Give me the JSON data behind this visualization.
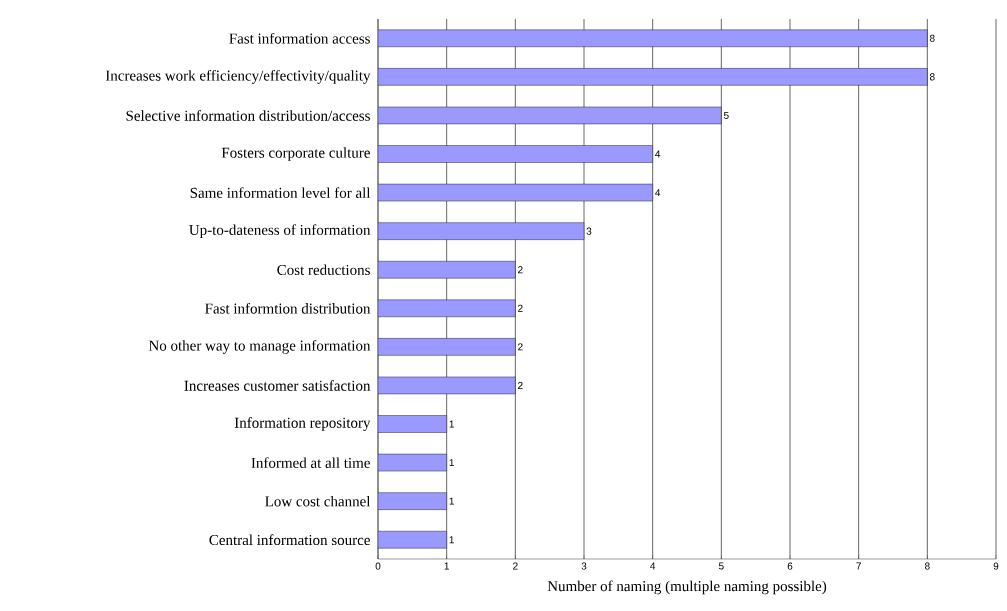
{
  "chart_data": {
    "type": "bar",
    "orientation": "horizontal",
    "xlabel": "Number of naming (multiple naming possible)",
    "categories": [
      "Fast information access",
      "Increases work efficiency/effectivity/quality",
      "Selective information distribution/access",
      "Fosters corporate culture",
      "Same information level for all",
      "Up-to-dateness of information",
      "Cost reductions",
      "Fast informtion distribution",
      "No other way to manage information",
      "Increases customer satisfaction",
      "Information repository",
      "Informed at all time",
      "Low cost channel",
      "Central information source"
    ],
    "values": [
      8,
      8,
      5,
      4,
      4,
      3,
      2,
      2,
      2,
      2,
      1,
      1,
      1,
      1
    ],
    "color": "#9999ff",
    "data_labels": true,
    "grid": "x",
    "xlim": [
      0,
      9
    ],
    "xticks": [
      0,
      1,
      2,
      3,
      4,
      5,
      6,
      7,
      8,
      9
    ]
  }
}
